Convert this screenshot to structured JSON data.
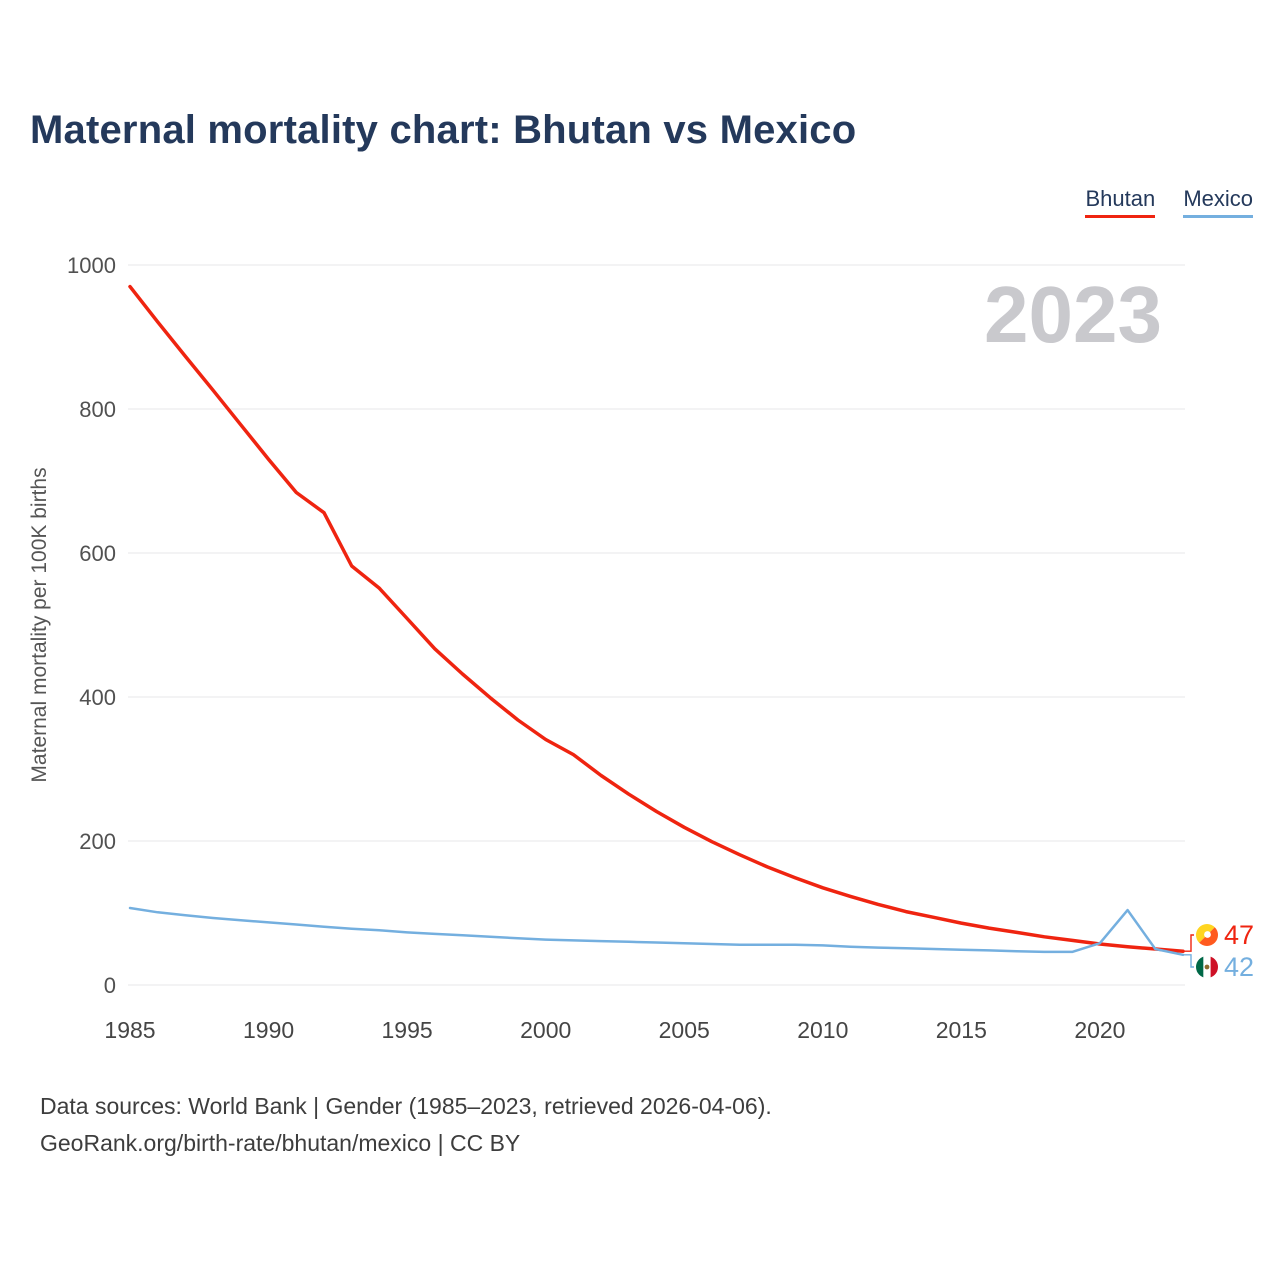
{
  "page": {
    "title": "Maternal mortality chart: Bhutan vs Mexico",
    "watermark": "2023",
    "footer": {
      "line1": "Data sources: World Bank | Gender (1985–2023, retrieved 2026-04-06).",
      "line2": "GeoRank.org/birth-rate/bhutan/mexico | CC BY"
    }
  },
  "legend": {
    "items": [
      {
        "label": "Bhutan",
        "color": "#ef2410"
      },
      {
        "label": "Mexico",
        "color": "#74afdf"
      }
    ]
  },
  "chart_data": {
    "type": "line",
    "title": "Maternal mortality chart: Bhutan vs Mexico",
    "ylabel": "Maternal mortality per 100K births",
    "xlabel": "",
    "ylim": [
      0,
      1000
    ],
    "yticks": [
      0,
      200,
      400,
      600,
      800,
      1000
    ],
    "xticks": [
      1985,
      1990,
      1995,
      2000,
      2005,
      2010,
      2015,
      2020
    ],
    "grid": "horizontal",
    "legend_position": "top-right",
    "watermark": "2023",
    "x": [
      1985,
      1986,
      1987,
      1988,
      1989,
      1990,
      1991,
      1992,
      1993,
      1994,
      1995,
      1996,
      1997,
      1998,
      1999,
      2000,
      2001,
      2002,
      2003,
      2004,
      2005,
      2006,
      2007,
      2008,
      2009,
      2010,
      2011,
      2012,
      2013,
      2014,
      2015,
      2016,
      2017,
      2018,
      2019,
      2020,
      2021,
      2022,
      2023
    ],
    "series": [
      {
        "name": "Bhutan",
        "color": "#ef2410",
        "end_label": "47",
        "flag_icon": "bhutan-flag-icon",
        "values": [
          970,
          921,
          873,
          826,
          778,
          730,
          684,
          656,
          582,
          551,
          509,
          467,
          432,
          399,
          368,
          341,
          320,
          291,
          265,
          241,
          219,
          199,
          181,
          164,
          149,
          135,
          123,
          112,
          102,
          94,
          86,
          79,
          73,
          67,
          62,
          57,
          53,
          50,
          47
        ]
      },
      {
        "name": "Mexico",
        "color": "#74afdf",
        "end_label": "42",
        "flag_icon": "mexico-flag-icon",
        "values": [
          107,
          101,
          97,
          93,
          90,
          87,
          84,
          81,
          78,
          76,
          73,
          71,
          69,
          67,
          65,
          63,
          62,
          61,
          60,
          59,
          58,
          57,
          56,
          56,
          56,
          55,
          53,
          52,
          51,
          50,
          49,
          48,
          47,
          46,
          46,
          58,
          104,
          50,
          42
        ]
      }
    ]
  }
}
